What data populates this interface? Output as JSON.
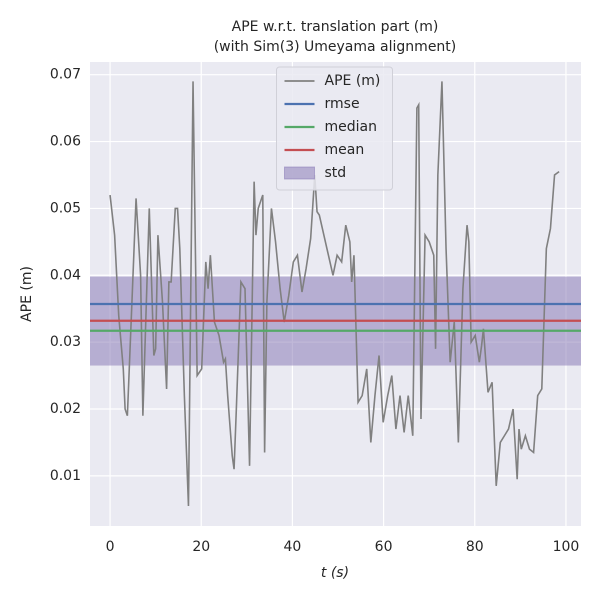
{
  "chart_data": {
    "type": "line",
    "title": "APE w.r.t. translation part (m)",
    "subtitle": "(with Sim(3) Umeyama alignment)",
    "x_label": "t (s)",
    "y_label": "APE (m)",
    "xlim": [
      -4.4,
      103.3
    ],
    "ylim": [
      0.0025,
      0.0719
    ],
    "xticks": [
      0,
      20,
      40,
      60,
      80,
      100
    ],
    "yticks": [
      0.01,
      0.02,
      0.03,
      0.04,
      0.05,
      0.06,
      0.07
    ],
    "grid": true,
    "legend": "upper center",
    "series": [
      {
        "name": "APE (m)",
        "color": "#808080",
        "x": [
          0,
          1,
          1.9,
          2.9,
          3.3,
          3.8,
          4.8,
          5.7,
          6.7,
          7.2,
          7.6,
          8.6,
          9.6,
          10,
          10.5,
          11.5,
          12.4,
          12.9,
          13.4,
          14.3,
          14.8,
          15.3,
          16.3,
          17.2,
          18.2,
          19.1,
          20.1,
          21,
          21.5,
          22,
          22.9,
          23.9,
          24.9,
          25.3,
          25.8,
          26.8,
          27.2,
          27.7,
          28.7,
          29.6,
          30.6,
          31.6,
          32,
          32.5,
          33.5,
          33.9,
          34.4,
          35.4,
          36.3,
          37.3,
          38.2,
          39.2,
          40.2,
          41.1,
          42.1,
          43,
          44,
          44.9,
          45.4,
          45.9,
          48.9,
          49.8,
          50.8,
          51.7,
          52.6,
          53,
          53.5,
          54.4,
          55.3,
          56.3,
          57.2,
          58.1,
          59,
          59.9,
          60.9,
          61.8,
          62.7,
          63.6,
          64.5,
          65.4,
          66.4,
          67.3,
          67.7,
          68.2,
          69.1,
          70,
          71,
          71.4,
          71.9,
          72.8,
          73.7,
          74.6,
          75.5,
          76.4,
          77.4,
          78.3,
          78.7,
          79.2,
          80.1,
          81,
          81.5,
          81.9,
          82.9,
          83.8,
          84.7,
          85.6,
          86.5,
          87.4,
          88.4,
          89.3,
          89.7,
          90.2,
          91.1,
          92,
          92.9,
          93.8,
          94.7,
          95.7,
          96.6,
          97.5,
          98.5
        ],
        "values": [
          0.052,
          0.046,
          0.034,
          0.026,
          0.02,
          0.019,
          0.036,
          0.0515,
          0.04,
          0.019,
          0.028,
          0.05,
          0.028,
          0.029,
          0.046,
          0.036,
          0.023,
          0.039,
          0.039,
          0.05,
          0.05,
          0.044,
          0.022,
          0.0055,
          0.069,
          0.025,
          0.026,
          0.042,
          0.038,
          0.043,
          0.033,
          0.031,
          0.027,
          0.0275,
          0.022,
          0.013,
          0.011,
          0.02,
          0.039,
          0.038,
          0.0115,
          0.054,
          0.046,
          0.05,
          0.052,
          0.0135,
          0.036,
          0.05,
          0.045,
          0.038,
          0.033,
          0.037,
          0.042,
          0.043,
          0.0375,
          0.041,
          0.0455,
          0.055,
          0.0495,
          0.049,
          0.04,
          0.043,
          0.042,
          0.0475,
          0.045,
          0.039,
          0.043,
          0.021,
          0.022,
          0.026,
          0.015,
          0.022,
          0.028,
          0.018,
          0.022,
          0.025,
          0.017,
          0.022,
          0.0165,
          0.022,
          0.016,
          0.065,
          0.0655,
          0.0185,
          0.046,
          0.045,
          0.043,
          0.029,
          0.055,
          0.069,
          0.044,
          0.027,
          0.033,
          0.015,
          0.038,
          0.0475,
          0.045,
          0.03,
          0.031,
          0.027,
          0.0295,
          0.032,
          0.0225,
          0.024,
          0.0085,
          0.015,
          0.016,
          0.017,
          0.02,
          0.0095,
          0.017,
          0.014,
          0.016,
          0.014,
          0.0135,
          0.022,
          0.023,
          0.044,
          0.047,
          0.055,
          0.0555
        ]
      }
    ],
    "hlines": [
      {
        "name": "rmse",
        "color": "#4c72b0",
        "value": 0.0357
      },
      {
        "name": "median",
        "color": "#55a868",
        "value": 0.0317
      },
      {
        "name": "mean",
        "color": "#c44e52",
        "value": 0.0332
      }
    ],
    "band": {
      "name": "std",
      "color": "#8172b2",
      "lower": 0.0265,
      "upper": 0.0398
    }
  }
}
